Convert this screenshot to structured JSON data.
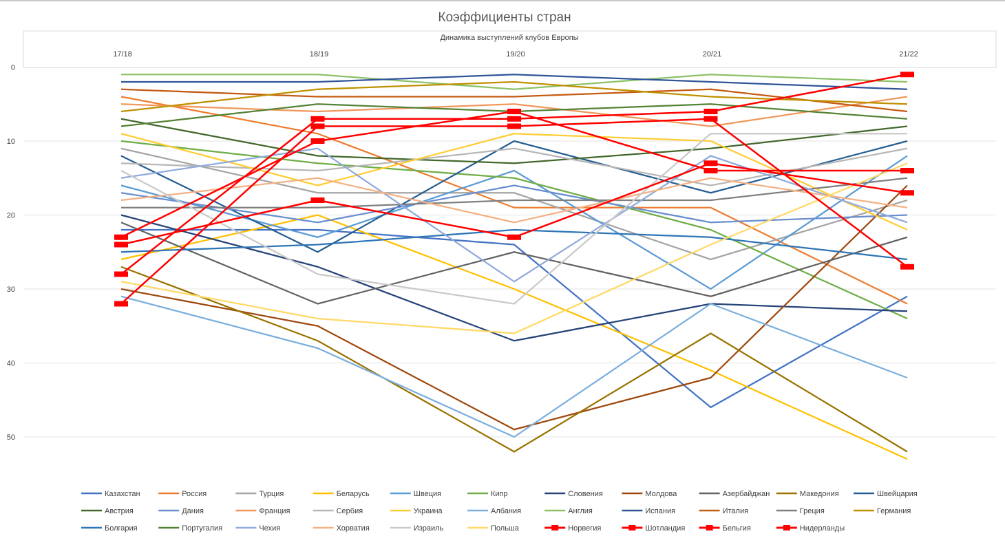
{
  "chart_data": {
    "type": "line",
    "title": "Коэффициенты стран",
    "subtitle": "Динамика выступлений клубов Европы",
    "categories": [
      "17/18",
      "18/19",
      "19/20",
      "20/21",
      "21/22"
    ],
    "y_ticks": [
      "0",
      "10",
      "20",
      "30",
      "40",
      "50"
    ],
    "ylim": [
      0,
      56
    ],
    "y_reversed": true,
    "x_axis_position": "top",
    "grid": "horizontal",
    "legend_position": "bottom",
    "series": [
      {
        "name": "Казахстан",
        "color": "#4472C4",
        "values": [
          22,
          22,
          24,
          46,
          31
        ],
        "markers": false
      },
      {
        "name": "Россия",
        "color": "#ED7D31",
        "values": [
          4,
          9,
          19,
          19,
          32
        ],
        "markers": false
      },
      {
        "name": "Турция",
        "color": "#A5A5A5",
        "values": [
          11,
          17,
          17,
          26,
          18
        ],
        "markers": false
      },
      {
        "name": "Беларусь",
        "color": "#FFC000",
        "values": [
          26,
          20,
          30,
          41,
          53
        ],
        "markers": false
      },
      {
        "name": "Швеция",
        "color": "#5B9BD5",
        "values": [
          16,
          23,
          14,
          30,
          12
        ],
        "markers": false
      },
      {
        "name": "Кипр",
        "color": "#70AD47",
        "values": [
          10,
          13,
          15,
          22,
          34
        ],
        "markers": false
      },
      {
        "name": "Словения",
        "color": "#264478",
        "values": [
          20,
          27,
          37,
          32,
          33
        ],
        "markers": false
      },
      {
        "name": "Молдова",
        "color": "#9E480E",
        "values": [
          30,
          35,
          49,
          42,
          16
        ],
        "markers": false
      },
      {
        "name": "Азербайджан",
        "color": "#636363",
        "values": [
          21,
          32,
          25,
          31,
          23
        ],
        "markers": false
      },
      {
        "name": "Македония",
        "color": "#997300",
        "values": [
          27,
          37,
          52,
          36,
          52
        ],
        "markers": false
      },
      {
        "name": "Швейцария",
        "color": "#255E91",
        "values": [
          12,
          25,
          10,
          17,
          10
        ],
        "markers": false
      },
      {
        "name": "Австрия",
        "color": "#43682B",
        "values": [
          7,
          12,
          13,
          11,
          8
        ],
        "markers": false
      },
      {
        "name": "Дания",
        "color": "#698ED0",
        "values": [
          17,
          21,
          16,
          21,
          20
        ],
        "markers": false
      },
      {
        "name": "Франция",
        "color": "#F1975A",
        "values": [
          5,
          6,
          5,
          8,
          4
        ],
        "markers": false
      },
      {
        "name": "Сербия",
        "color": "#B7B7B7",
        "values": [
          13,
          14,
          11,
          16,
          11
        ],
        "markers": false
      },
      {
        "name": "Украина",
        "color": "#FFCD33",
        "values": [
          9,
          16,
          9,
          10,
          22
        ],
        "markers": false
      },
      {
        "name": "Албания",
        "color": "#7CAFDD",
        "values": [
          31,
          38,
          50,
          32,
          42
        ],
        "markers": false
      },
      {
        "name": "Англия",
        "color": "#8CC168",
        "values": [
          1,
          1,
          3,
          1,
          2
        ],
        "markers": false
      },
      {
        "name": "Испания",
        "color": "#2F5597",
        "values": [
          2,
          2,
          1,
          2,
          3
        ],
        "markers": false
      },
      {
        "name": "Италия",
        "color": "#C55A11",
        "values": [
          3,
          4,
          4,
          3,
          6
        ],
        "markers": false
      },
      {
        "name": "Греция",
        "color": "#7F7F7F",
        "values": [
          19,
          19,
          18,
          18,
          15
        ],
        "markers": false
      },
      {
        "name": "Германия",
        "color": "#BF9000",
        "values": [
          6,
          3,
          2,
          4,
          5
        ],
        "markers": false
      },
      {
        "name": "Болгария",
        "color": "#2E75B6",
        "values": [
          25,
          24,
          22,
          23,
          26
        ],
        "markers": false
      },
      {
        "name": "Португалия",
        "color": "#548235",
        "values": [
          8,
          5,
          6,
          5,
          7
        ],
        "markers": false
      },
      {
        "name": "Чехия",
        "color": "#8FAADC",
        "values": [
          15,
          11,
          29,
          12,
          21
        ],
        "markers": false
      },
      {
        "name": "Хорватия",
        "color": "#F4B183",
        "values": [
          18,
          15,
          21,
          15,
          19
        ],
        "markers": false
      },
      {
        "name": "Израиль",
        "color": "#C9C9C9",
        "values": [
          14,
          28,
          32,
          9,
          9
        ],
        "markers": false
      },
      {
        "name": "Польша",
        "color": "#FFD966",
        "values": [
          29,
          34,
          36,
          24,
          13
        ],
        "markers": false
      },
      {
        "name": "Норвегия",
        "color": "#FF0000",
        "values": [
          23,
          10,
          6,
          14,
          14
        ],
        "markers": true
      },
      {
        "name": "Шотландия",
        "color": "#FF0000",
        "values": [
          24,
          18,
          23,
          13,
          17
        ],
        "markers": true
      },
      {
        "name": "Бельгия",
        "color": "#FF0000",
        "values": [
          28,
          7,
          7,
          6,
          1
        ],
        "markers": true
      },
      {
        "name": "Нидерланды",
        "color": "#FF0000",
        "values": [
          32,
          8,
          8,
          7,
          27
        ],
        "markers": true
      }
    ]
  }
}
